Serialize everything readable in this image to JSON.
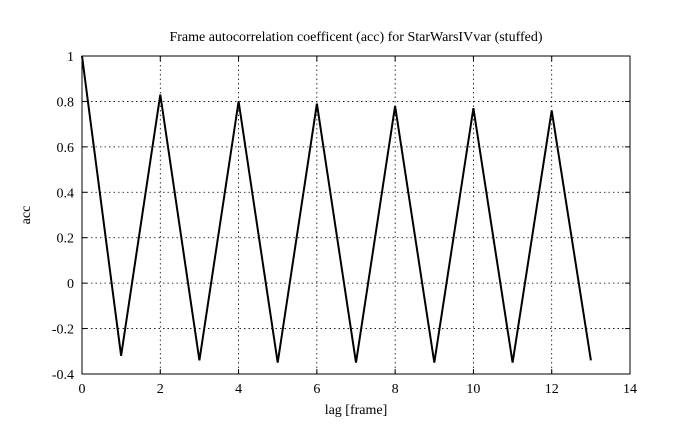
{
  "chart_data": {
    "type": "line",
    "title": "Frame autocorrelation coefficent (acc) for StarWarsIVvar (stuffed)",
    "xlabel": "lag [frame]",
    "ylabel": "acc",
    "xlim": [
      0,
      14
    ],
    "ylim": [
      -0.4,
      1
    ],
    "xticks": [
      0,
      2,
      4,
      6,
      8,
      10,
      12,
      14
    ],
    "yticks": [
      -0.4,
      -0.2,
      0,
      0.2,
      0.4,
      0.6,
      0.8,
      1
    ],
    "xtick_labels": [
      "0",
      "2",
      "4",
      "6",
      "8",
      "10",
      "12",
      "14"
    ],
    "ytick_labels": [
      "-0.4",
      "-0.2",
      "0",
      "0.2",
      "0.4",
      "0.6",
      "0.8",
      "1"
    ],
    "grid": true,
    "series": [
      {
        "color": "#000000",
        "x": [
          0,
          1,
          2,
          3,
          4,
          5,
          6,
          7,
          8,
          9,
          10,
          11,
          12,
          13
        ],
        "y": [
          1.0,
          -0.32,
          0.83,
          -0.34,
          0.8,
          -0.35,
          0.79,
          -0.35,
          0.78,
          -0.35,
          0.77,
          -0.35,
          0.76,
          -0.34
        ]
      }
    ]
  }
}
